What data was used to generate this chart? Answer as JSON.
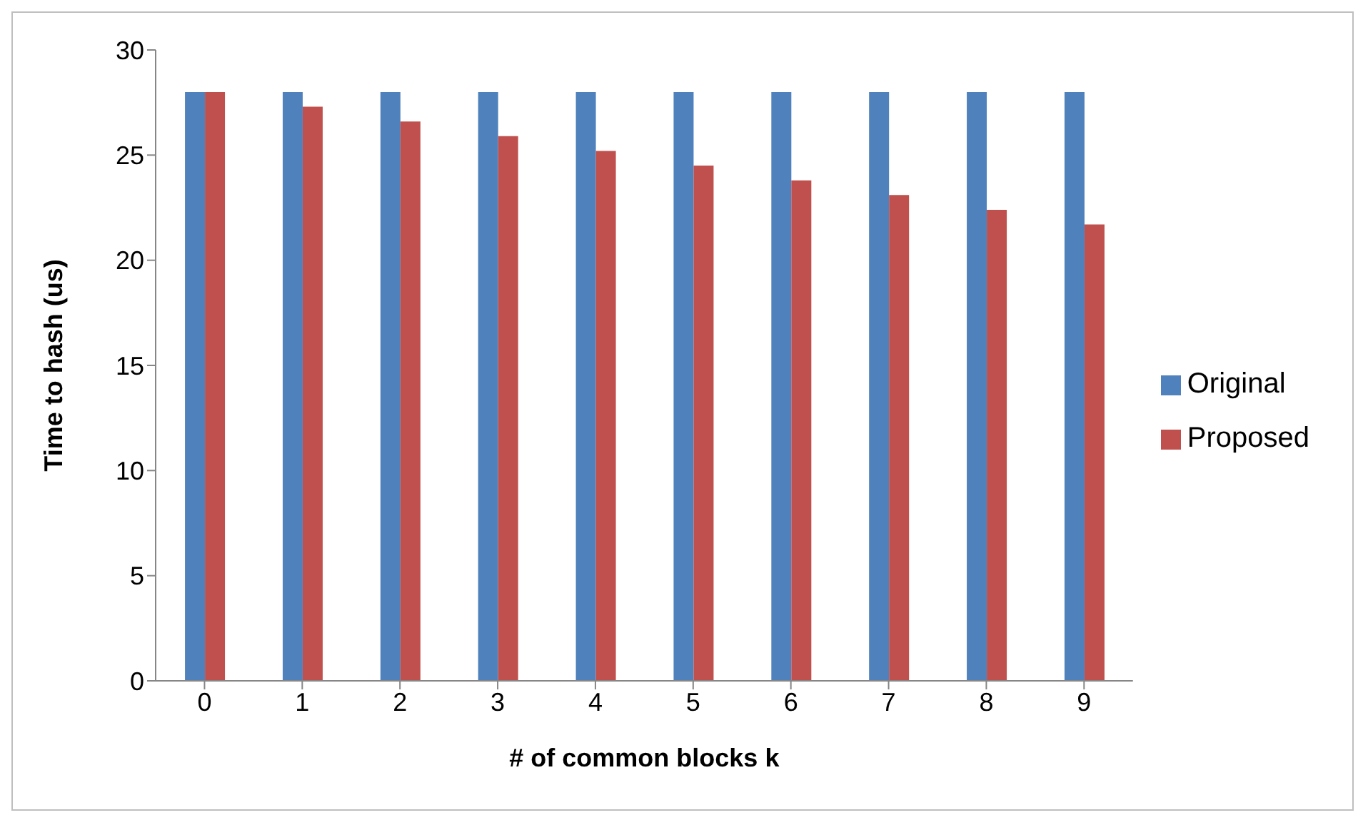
{
  "chart_data": {
    "type": "bar",
    "xlabel": "# of common blocks k",
    "ylabel": "Time to hash (us)",
    "categories": [
      "0",
      "1",
      "2",
      "3",
      "4",
      "5",
      "6",
      "7",
      "8",
      "9"
    ],
    "series": [
      {
        "name": "Original",
        "color": "#4f81bd",
        "values": [
          28,
          28,
          28,
          28,
          28,
          28,
          28,
          28,
          28,
          28
        ]
      },
      {
        "name": "Proposed",
        "color": "#c0504d",
        "values": [
          28,
          27.3,
          26.6,
          25.9,
          25.2,
          24.5,
          23.8,
          23.1,
          22.4,
          21.7
        ]
      }
    ],
    "ylim": [
      0,
      30
    ],
    "yticks": [
      0,
      5,
      10,
      15,
      20,
      25,
      30
    ],
    "grid": false,
    "legend": "right"
  }
}
